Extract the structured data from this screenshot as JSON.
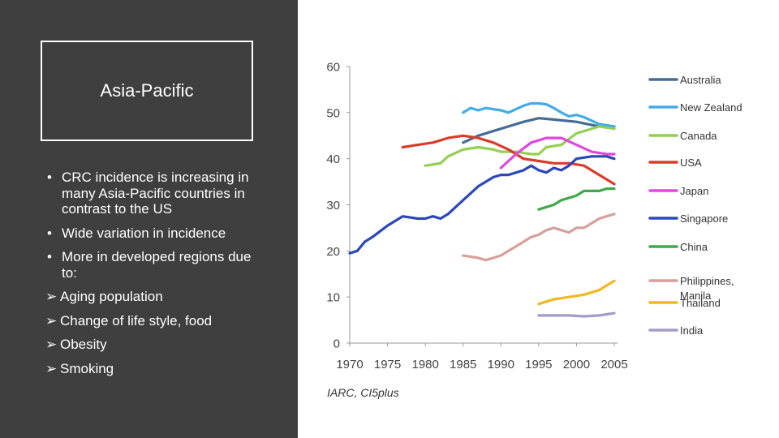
{
  "slide": {
    "title": "Asia-Pacific",
    "bullets": [
      "CRC incidence is increasing in many Asia-Pacific countries in contrast to the US",
      "Wide variation in incidence",
      "More in developed regions due to:"
    ],
    "arrow_items": [
      "Aging population",
      "Change of life style, food",
      "Obesity",
      "Smoking"
    ],
    "bullet_glyph": "•",
    "arrow_glyph": "➢"
  },
  "chart_data": {
    "type": "line",
    "title": "",
    "xlabel": "",
    "ylabel": "",
    "xlim": [
      1970,
      2005
    ],
    "ylim": [
      0,
      60
    ],
    "xticks": [
      1970,
      1975,
      1980,
      1985,
      1990,
      1995,
      2000,
      2005
    ],
    "yticks": [
      0,
      10,
      20,
      30,
      40,
      50,
      60
    ],
    "grid": false,
    "legend_position": "right",
    "source": "IARC, CI5plus",
    "series": [
      {
        "name": "Australia",
        "color": "#456c96",
        "x": [
          1985,
          1987,
          1990,
          1993,
          1995,
          1997,
          2000,
          2003,
          2005
        ],
        "y": [
          43.5,
          45,
          46.5,
          48,
          48.8,
          48.5,
          48,
          47,
          47
        ]
      },
      {
        "name": "New Zealand",
        "color": "#43ace5",
        "x": [
          1985,
          1986,
          1987,
          1988,
          1990,
          1991,
          1993,
          1994,
          1995,
          1996,
          1997,
          1998,
          1999,
          2000,
          2001,
          2003,
          2005
        ],
        "y": [
          50,
          51,
          50.5,
          51,
          50.5,
          50,
          51.5,
          52,
          52,
          51.8,
          51,
          50,
          49.2,
          49.5,
          49,
          47.5,
          47
        ]
      },
      {
        "name": "Canada",
        "color": "#92d050",
        "x": [
          1980,
          1982,
          1983,
          1985,
          1987,
          1989,
          1990,
          1992,
          1994,
          1995,
          1996,
          1998,
          2000,
          2001,
          2002,
          2003,
          2005
        ],
        "y": [
          38.5,
          39,
          40.5,
          42,
          42.5,
          42,
          41.5,
          41.5,
          41,
          41,
          42.5,
          43,
          45.5,
          46,
          46.5,
          47,
          46.5
        ]
      },
      {
        "name": "USA",
        "color": "#d93c2a",
        "x": [
          1977,
          1979,
          1981,
          1983,
          1985,
          1987,
          1989,
          1991,
          1993,
          1995,
          1997,
          1999,
          2001,
          2003,
          2005
        ],
        "y": [
          42.5,
          43,
          43.5,
          44.5,
          45,
          44.5,
          43.5,
          42,
          40,
          39.5,
          39,
          39,
          38.5,
          36.5,
          34.5
        ]
      },
      {
        "name": "Japan",
        "color": "#e046e0",
        "x": [
          1990,
          1992,
          1994,
          1996,
          1998,
          2000,
          2002,
          2004,
          2005
        ],
        "y": [
          38,
          41,
          43.5,
          44.5,
          44.5,
          43,
          41.5,
          41,
          41
        ]
      },
      {
        "name": "Singapore",
        "color": "#2a48b8",
        "x": [
          1970,
          1971,
          1972,
          1973,
          1975,
          1977,
          1979,
          1980,
          1981,
          1982,
          1983,
          1985,
          1987,
          1989,
          1990,
          1991,
          1993,
          1994,
          1995,
          1996,
          1997,
          1998,
          1999,
          2000,
          2002,
          2004,
          2005
        ],
        "y": [
          19.5,
          20,
          22,
          23,
          25.5,
          27.5,
          27,
          27,
          27.5,
          27,
          28,
          31,
          34,
          36,
          36.5,
          36.5,
          37.5,
          38.5,
          37.5,
          37,
          38,
          37.5,
          38.5,
          40,
          40.5,
          40.5,
          40
        ]
      },
      {
        "name": "China",
        "color": "#3fa84a",
        "x": [
          1995,
          1997,
          1998,
          1999,
          2000,
          2001,
          2002,
          2003,
          2004,
          2005
        ],
        "y": [
          29,
          30,
          31,
          31.5,
          32,
          33,
          33,
          33,
          33.5,
          33.5
        ]
      },
      {
        "name": "Philippines, Manila",
        "color": "#d9a09a",
        "x": [
          1985,
          1987,
          1988,
          1989,
          1990,
          1991,
          1992,
          1993,
          1994,
          1995,
          1996,
          1997,
          1998,
          1999,
          2000,
          2001,
          2002,
          2003,
          2004,
          2005
        ],
        "y": [
          19,
          18.5,
          18,
          18.5,
          19,
          20,
          21,
          22,
          23,
          23.5,
          24.5,
          25,
          24.5,
          24,
          25,
          25,
          26,
          27,
          27.5,
          28
        ]
      },
      {
        "name": "Thailand",
        "color": "#f2b822",
        "x": [
          1995,
          1997,
          1999,
          2001,
          2003,
          2005
        ],
        "y": [
          8.5,
          9.5,
          10,
          10.5,
          11.5,
          13.5
        ]
      },
      {
        "name": "India",
        "color": "#a59ac8",
        "x": [
          1995,
          1997,
          1999,
          2001,
          2003,
          2005
        ],
        "y": [
          6,
          6,
          6,
          5.8,
          6,
          6.5
        ]
      }
    ]
  }
}
